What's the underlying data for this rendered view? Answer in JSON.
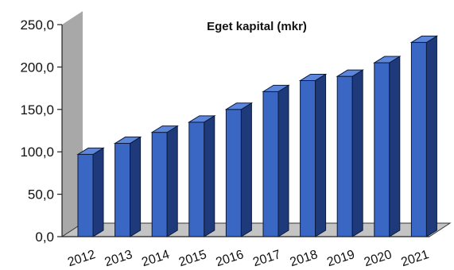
{
  "chart_data": {
    "type": "bar",
    "title": "Eget kapital (mkr)",
    "xlabel": "",
    "ylabel": "",
    "categories": [
      "2012",
      "2013",
      "2014",
      "2015",
      "2016",
      "2017",
      "2018",
      "2019",
      "2020",
      "2021"
    ],
    "values": [
      97,
      110,
      123,
      135,
      150,
      171,
      184,
      189,
      205,
      229
    ],
    "ylim": [
      0,
      250
    ],
    "y_ticks": [
      "0,0",
      "50,0",
      "100,0",
      "150,0",
      "200,0",
      "250,0"
    ],
    "grid": false,
    "legend": "none",
    "style": "3d-column",
    "colors": {
      "bar_front": "#3a66c4",
      "bar_top": "#5b86dc",
      "bar_side": "#1e3a7a",
      "bar_edge": "#0d1a3a",
      "wall": "#a8a8a8",
      "floor": "#c4c4c4"
    }
  }
}
